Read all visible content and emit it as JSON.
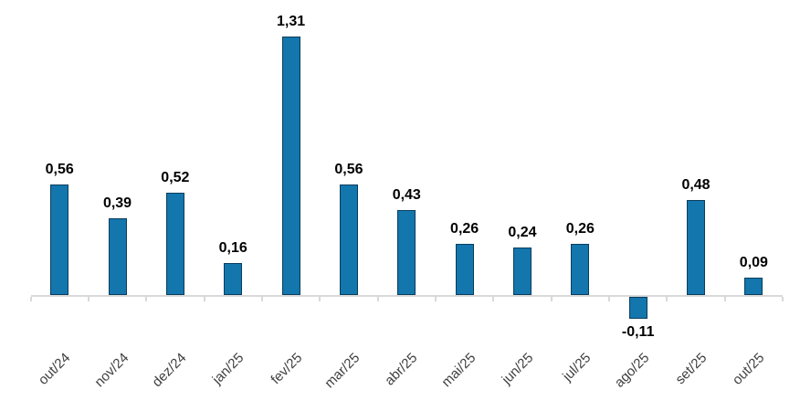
{
  "chart_data": {
    "type": "bar",
    "categories": [
      "out/24",
      "nov/24",
      "dez/24",
      "jan/25",
      "fev/25",
      "mar/25",
      "abr/25",
      "mai/25",
      "jun/25",
      "jul/25",
      "ago/25",
      "set/25",
      "out/25"
    ],
    "values": [
      0.56,
      0.39,
      0.52,
      0.16,
      1.31,
      0.56,
      0.43,
      0.26,
      0.24,
      0.26,
      -0.11,
      0.48,
      0.09
    ],
    "value_labels": [
      "0,56",
      "0,39",
      "0,52",
      "0,16",
      "1,31",
      "0,56",
      "0,43",
      "0,26",
      "0,24",
      "0,26",
      "-0,11",
      "0,48",
      "0,09"
    ],
    "title": "",
    "xlabel": "",
    "ylabel": "",
    "ylim": [
      -0.25,
      1.45
    ],
    "grid": false,
    "legend": null,
    "colors": {
      "bar_fill": "#1376AD",
      "bar_border": "#0B3D5C",
      "axis_line": "#D9D9D9",
      "value_label": "#000000",
      "category_label": "#3F3F3F",
      "background": "#FFFFFF"
    }
  }
}
